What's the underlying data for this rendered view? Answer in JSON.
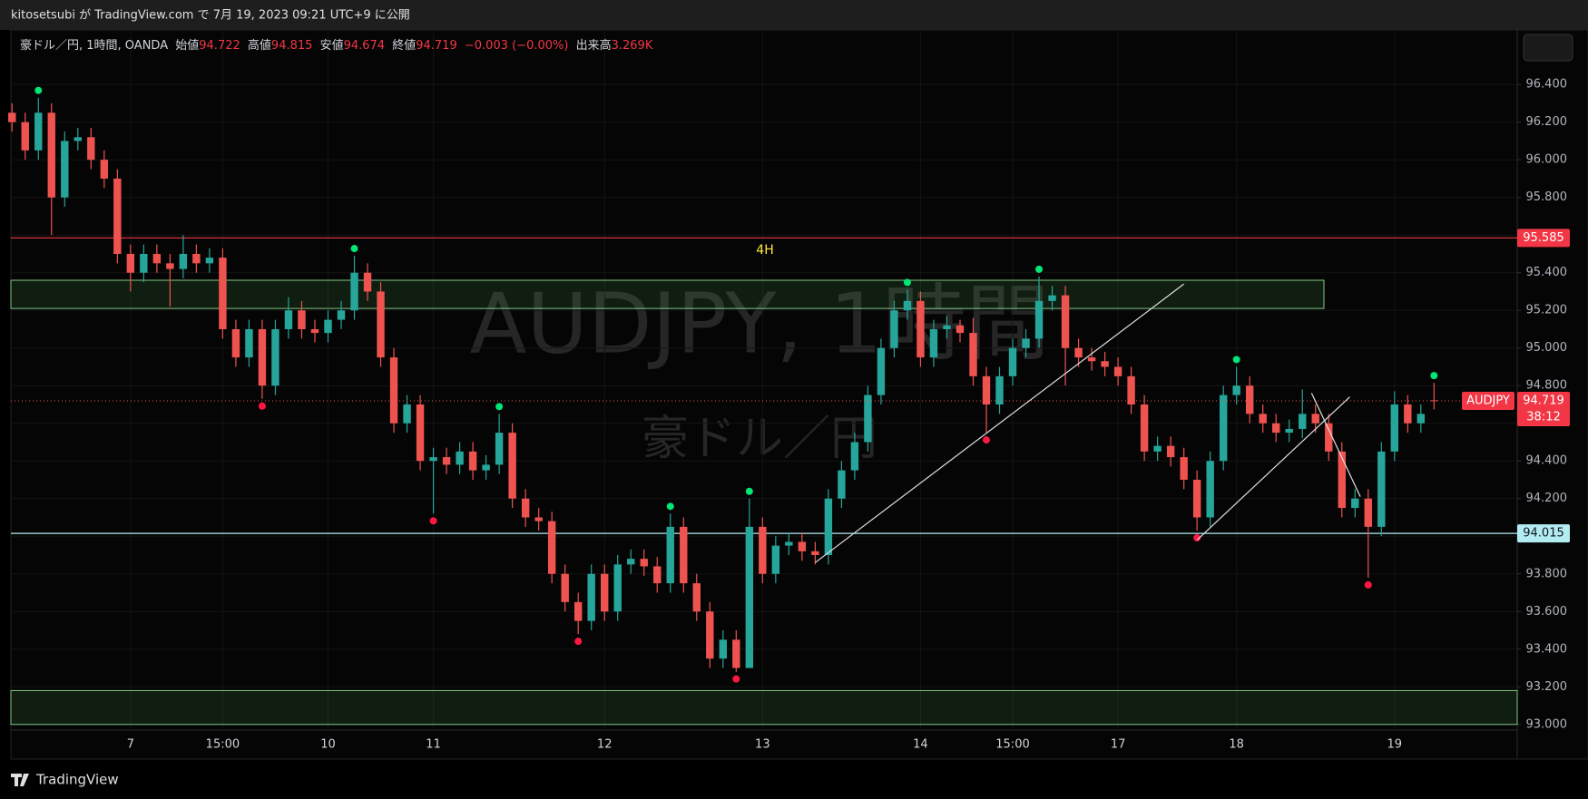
{
  "chart_data": {
    "type": "candlestick",
    "header": "kitosetsubi が TradingView.com で 7月 19, 2023 09:21 UTC+9 に公開",
    "brand": "TradingView",
    "title": "AUDJPY, 1時間",
    "subtitle": "豪ドル／円",
    "legend": {
      "symbol": "豪ドル／円, 1時間, OANDA",
      "open_label": "始値",
      "high_label": "高値",
      "low_label": "安値",
      "close_label": "終値",
      "change": "−0.003 (−0.00%)",
      "volume_label": "出来高",
      "volume": "3.269K"
    },
    "annotation": "4H",
    "ticker": "AUDJPY",
    "countdown": "38:12",
    "up_color": "#26a69a",
    "down_color": "#ef5350",
    "categories": [
      null,
      null,
      null,
      null,
      null,
      null,
      null,
      null,
      null,
      "7",
      null,
      null,
      null,
      null,
      null,
      null,
      "15:00",
      null,
      null,
      null,
      null,
      null,
      null,
      null,
      "10",
      null,
      null,
      null,
      null,
      null,
      null,
      null,
      "11",
      null,
      null,
      null,
      null,
      null,
      null,
      null,
      null,
      null,
      null,
      null,
      null,
      "12",
      null,
      null,
      null,
      null,
      null,
      null,
      null,
      null,
      null,
      null,
      null,
      "13",
      null,
      null,
      null,
      null,
      null,
      null,
      null,
      null,
      null,
      null,
      null,
      "14",
      null,
      null,
      null,
      null,
      null,
      null,
      "15:00",
      null,
      null,
      null,
      null,
      null,
      null,
      null,
      "17",
      null,
      null,
      null,
      null,
      null,
      null,
      null,
      null,
      "18",
      null,
      null,
      null,
      null,
      null,
      null,
      null,
      null,
      null,
      null,
      null,
      "19",
      null,
      null,
      null
    ],
    "series": {
      "open": [
        96.25,
        96.2,
        96.05,
        96.25,
        95.8,
        96.1,
        96.12,
        96.0,
        95.9,
        95.5,
        95.4,
        95.5,
        95.45,
        95.42,
        95.5,
        95.45,
        95.48,
        95.1,
        94.95,
        95.1,
        94.8,
        95.1,
        95.2,
        95.1,
        95.08,
        95.15,
        95.2,
        95.4,
        95.3,
        94.95,
        94.6,
        94.7,
        94.4,
        94.42,
        94.38,
        94.45,
        94.35,
        94.38,
        94.55,
        94.2,
        94.1,
        94.08,
        93.8,
        93.65,
        93.55,
        93.8,
        93.6,
        93.85,
        93.88,
        93.84,
        93.75,
        94.05,
        93.75,
        93.6,
        93.35,
        93.45,
        93.3,
        94.05,
        93.8,
        93.95,
        93.97,
        93.92,
        93.9,
        94.2,
        94.35,
        94.5,
        94.75,
        95.0,
        95.2,
        95.25,
        94.95,
        95.1,
        95.12,
        95.08,
        94.85,
        94.7,
        94.85,
        95.0,
        95.05,
        95.25,
        95.28,
        95.0,
        94.95,
        94.93,
        94.9,
        94.85,
        94.7,
        94.45,
        94.48,
        94.42,
        94.3,
        94.1,
        94.4,
        94.75,
        94.8,
        94.65,
        94.6,
        94.55,
        94.57,
        94.65,
        94.6,
        94.45,
        94.15,
        94.2,
        94.05,
        94.45,
        94.7,
        94.6,
        94.722
      ],
      "high": [
        96.3,
        96.25,
        96.33,
        96.3,
        96.15,
        96.17,
        96.17,
        96.05,
        95.95,
        95.55,
        95.55,
        95.55,
        95.5,
        95.6,
        95.55,
        95.53,
        95.53,
        95.15,
        95.15,
        95.15,
        95.15,
        95.27,
        95.25,
        95.15,
        95.2,
        95.25,
        95.49,
        95.45,
        95.35,
        95.0,
        94.75,
        94.75,
        94.47,
        94.47,
        94.5,
        94.5,
        94.43,
        94.65,
        94.6,
        94.25,
        94.15,
        94.13,
        93.85,
        93.7,
        93.85,
        93.85,
        93.9,
        93.93,
        93.93,
        93.89,
        94.12,
        94.1,
        93.8,
        93.65,
        93.5,
        93.5,
        94.2,
        94.1,
        94.0,
        94.02,
        94.02,
        93.97,
        94.25,
        94.4,
        94.55,
        94.8,
        95.05,
        95.25,
        95.31,
        95.3,
        95.15,
        95.17,
        95.15,
        95.16,
        94.9,
        94.9,
        95.05,
        95.1,
        95.38,
        95.33,
        95.33,
        95.05,
        95.0,
        94.98,
        94.95,
        94.9,
        94.75,
        94.53,
        94.53,
        94.47,
        94.35,
        94.45,
        94.8,
        94.9,
        94.85,
        94.7,
        94.65,
        94.62,
        94.78,
        94.7,
        94.65,
        94.5,
        94.25,
        94.25,
        94.5,
        94.77,
        94.75,
        94.7,
        94.815
      ],
      "low": [
        96.15,
        96.0,
        96.0,
        95.6,
        95.75,
        96.05,
        95.95,
        95.85,
        95.45,
        95.3,
        95.35,
        95.4,
        95.22,
        95.37,
        95.4,
        95.4,
        95.05,
        94.9,
        94.9,
        94.73,
        94.75,
        95.05,
        95.05,
        95.03,
        95.03,
        95.1,
        95.15,
        95.25,
        94.9,
        94.55,
        94.55,
        94.35,
        94.12,
        94.33,
        94.33,
        94.3,
        94.3,
        94.33,
        94.15,
        94.05,
        94.03,
        93.75,
        93.6,
        93.48,
        93.5,
        93.55,
        93.55,
        93.8,
        93.79,
        93.7,
        93.7,
        93.7,
        93.55,
        93.3,
        93.3,
        93.28,
        93.3,
        93.75,
        93.75,
        93.9,
        93.87,
        93.85,
        93.85,
        94.15,
        94.3,
        94.45,
        94.7,
        94.95,
        95.15,
        94.9,
        94.9,
        95.05,
        95.03,
        94.8,
        94.55,
        94.65,
        94.8,
        94.95,
        95.0,
        95.2,
        94.8,
        94.9,
        94.88,
        94.85,
        94.8,
        94.65,
        94.4,
        94.4,
        94.37,
        94.25,
        94.03,
        94.05,
        94.35,
        94.7,
        94.6,
        94.55,
        94.5,
        94.5,
        94.52,
        94.55,
        94.4,
        94.1,
        94.1,
        93.78,
        94.0,
        94.4,
        94.55,
        94.55,
        94.674
      ],
      "close": [
        96.2,
        96.05,
        96.25,
        95.8,
        96.1,
        96.12,
        96.0,
        95.9,
        95.5,
        95.4,
        95.5,
        95.45,
        95.42,
        95.5,
        95.45,
        95.48,
        95.1,
        94.95,
        95.1,
        94.8,
        95.1,
        95.2,
        95.1,
        95.08,
        95.15,
        95.2,
        95.4,
        95.3,
        94.95,
        94.6,
        94.7,
        94.4,
        94.42,
        94.38,
        94.45,
        94.35,
        94.38,
        94.55,
        94.2,
        94.1,
        94.08,
        93.8,
        93.65,
        93.55,
        93.8,
        93.6,
        93.85,
        93.88,
        93.84,
        93.75,
        94.05,
        93.75,
        93.6,
        93.35,
        93.45,
        93.3,
        94.05,
        93.8,
        93.95,
        93.97,
        93.92,
        93.9,
        94.2,
        94.35,
        94.5,
        94.75,
        95.0,
        95.2,
        95.25,
        94.95,
        95.1,
        95.12,
        95.08,
        94.85,
        94.7,
        94.85,
        95.0,
        95.05,
        95.25,
        95.28,
        95.0,
        94.95,
        94.93,
        94.9,
        94.85,
        94.7,
        94.45,
        94.48,
        94.42,
        94.3,
        94.1,
        94.4,
        94.75,
        94.8,
        94.65,
        94.6,
        94.55,
        94.57,
        94.65,
        94.6,
        94.45,
        94.15,
        94.2,
        94.05,
        94.45,
        94.7,
        94.6,
        94.65,
        94.719
      ]
    },
    "levels": [
      {
        "value": 95.585,
        "color": "#f23645",
        "label_text": "#ffffff"
      },
      {
        "value": 94.015,
        "color": "#b2ebf2",
        "label_text": "#131722"
      }
    ],
    "zones": [
      {
        "low": 95.21,
        "high": 95.36
      },
      {
        "low": 93.0,
        "high": 93.18
      }
    ],
    "trendlines": [
      {
        "x": [
          61,
          89
        ],
        "y": [
          93.86,
          95.34
        ]
      },
      {
        "x": [
          90,
          101.6
        ],
        "y": [
          93.98,
          94.74
        ]
      },
      {
        "x": [
          98.7,
          102.4
        ],
        "y": [
          94.76,
          94.21
        ]
      }
    ],
    "ylim": [
      92.97,
      96.69
    ],
    "yticks": [
      {
        "value": 93.0,
        "label": "93.000"
      },
      {
        "value": 93.2,
        "label": "93.200"
      },
      {
        "value": 93.4,
        "label": "93.400"
      },
      {
        "value": 93.6,
        "label": "93.600"
      },
      {
        "value": 93.8,
        "label": "93.800"
      },
      {
        "value": 94.0,
        "label": "94.000"
      },
      {
        "value": 94.2,
        "label": "94.200"
      },
      {
        "value": 94.4,
        "label": "94.400"
      },
      {
        "value": 94.6,
        "label": "94.600"
      },
      {
        "value": 94.8,
        "label": "94.800"
      },
      {
        "value": 95.0,
        "label": "95.000"
      },
      {
        "value": 95.2,
        "label": "95.200"
      },
      {
        "value": 95.4,
        "label": "95.400"
      },
      {
        "value": 95.6,
        "label": "95.600"
      },
      {
        "value": 95.8,
        "label": "95.800"
      },
      {
        "value": 96.0,
        "label": "96.000"
      },
      {
        "value": 96.2,
        "label": "96.200"
      },
      {
        "value": 96.4,
        "label": "96.400"
      }
    ],
    "grid": true
  }
}
